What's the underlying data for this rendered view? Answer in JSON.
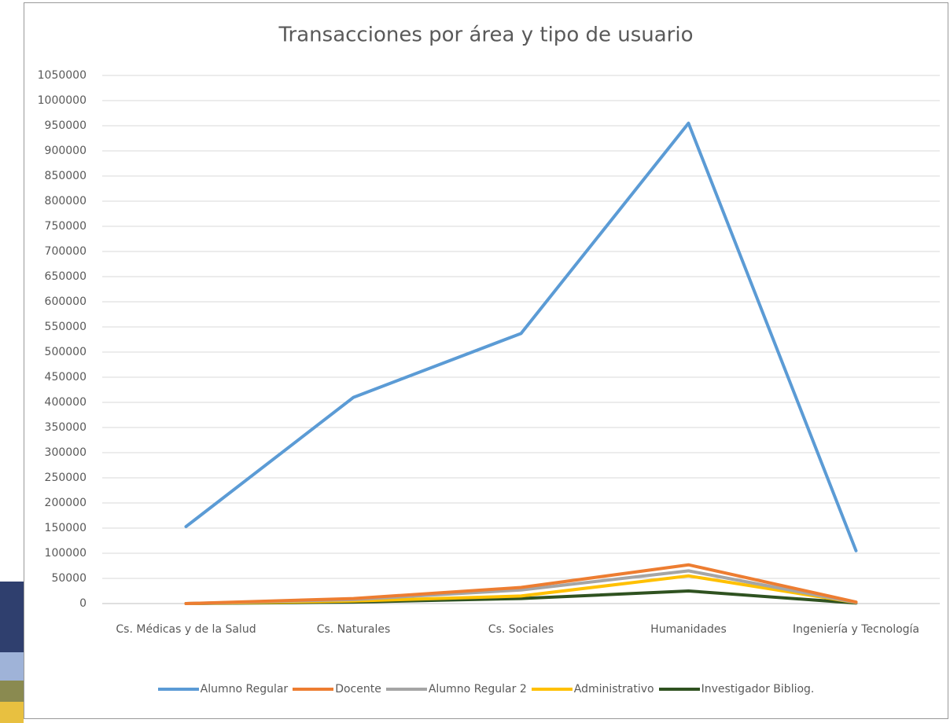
{
  "chart_data": {
    "type": "line",
    "title": "Transacciones  por  área y tipo de usuario",
    "categories": [
      "Cs. Médicas y de la Salud",
      "Cs. Naturales",
      "Cs. Sociales",
      "Humanidades",
      "Ingeniería y Tecnología"
    ],
    "series": [
      {
        "name": "Alumno Regular",
        "color": "#5b9bd5",
        "values": [
          153000,
          410000,
          537000,
          955000,
          105000
        ]
      },
      {
        "name": "Docente",
        "color": "#ed7d31",
        "values": [
          0,
          10000,
          32000,
          77000,
          3000
        ]
      },
      {
        "name": "Alumno Regular 2",
        "color": "#a5a5a5",
        "values": [
          0,
          8000,
          27000,
          65000,
          2000
        ]
      },
      {
        "name": "Administrativo",
        "color": "#ffc000",
        "values": [
          0,
          5000,
          15000,
          55000,
          2000
        ]
      },
      {
        "name": "Investigador Bibliog.",
        "color": "#2f5220",
        "values": [
          0,
          3000,
          10000,
          25000,
          1000
        ]
      }
    ],
    "ylim": [
      0,
      1050000
    ],
    "yticks": [
      0,
      50000,
      100000,
      150000,
      200000,
      250000,
      300000,
      350000,
      400000,
      450000,
      500000,
      550000,
      600000,
      650000,
      700000,
      750000,
      800000,
      850000,
      900000,
      950000,
      1000000,
      1050000
    ],
    "grid": true,
    "legend": "bottom"
  }
}
